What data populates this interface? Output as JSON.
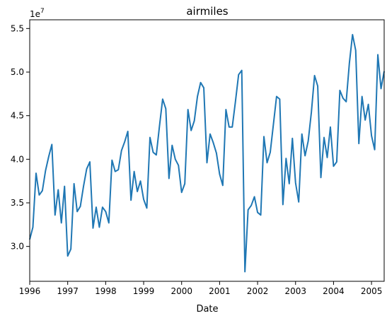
{
  "chart_data": {
    "type": "line",
    "title": "airmiles",
    "xlabel": "Date",
    "ylabel": "",
    "y_offset_label": "1e7",
    "xlim": [
      "1996-01",
      "2005-05"
    ],
    "ylim": [
      2.6,
      5.6
    ],
    "x_ticks": [
      {
        "date": "1996-01",
        "label": "1996"
      },
      {
        "date": "1997-01",
        "label": "1997"
      },
      {
        "date": "1998-01",
        "label": "1998"
      },
      {
        "date": "1999-01",
        "label": "1999"
      },
      {
        "date": "2000-01",
        "label": "2000"
      },
      {
        "date": "2001-01",
        "label": "2001"
      },
      {
        "date": "2002-01",
        "label": "2002"
      },
      {
        "date": "2003-01",
        "label": "2003"
      },
      {
        "date": "2004-01",
        "label": "2004"
      },
      {
        "date": "2005-01",
        "label": "2005"
      }
    ],
    "y_ticks": [
      {
        "value": 3.0,
        "label": "3.0"
      },
      {
        "value": 3.5,
        "label": "3.5"
      },
      {
        "value": 4.0,
        "label": "4.0"
      },
      {
        "value": 4.5,
        "label": "4.5"
      },
      {
        "value": 5.0,
        "label": "5.0"
      },
      {
        "value": 5.5,
        "label": "5.5"
      }
    ],
    "grid": false,
    "color": "#1f77b4",
    "series": [
      {
        "x": [
          "1996-01",
          "1996-02",
          "1996-03",
          "1996-04",
          "1996-05",
          "1996-06",
          "1996-07",
          "1996-08",
          "1996-09",
          "1996-10",
          "1996-11",
          "1996-12",
          "1997-01",
          "1997-02",
          "1997-03",
          "1997-04",
          "1997-05",
          "1997-06",
          "1997-07",
          "1997-08",
          "1997-09",
          "1997-10",
          "1997-11",
          "1997-12",
          "1998-01",
          "1998-02",
          "1998-03",
          "1998-04",
          "1998-05",
          "1998-06",
          "1998-07",
          "1998-08",
          "1998-09",
          "1998-10",
          "1998-11",
          "1998-12",
          "1999-01",
          "1999-02",
          "1999-03",
          "1999-04",
          "1999-05",
          "1999-06",
          "1999-07",
          "1999-08",
          "1999-09",
          "1999-10",
          "1999-11",
          "1999-12",
          "2000-01",
          "2000-02",
          "2000-03",
          "2000-04",
          "2000-05",
          "2000-06",
          "2000-07",
          "2000-08",
          "2000-09",
          "2000-10",
          "2000-11",
          "2000-12",
          "2001-01",
          "2001-02",
          "2001-03",
          "2001-04",
          "2001-05",
          "2001-06",
          "2001-07",
          "2001-08",
          "2001-09",
          "2001-10",
          "2001-11",
          "2001-12",
          "2002-01",
          "2002-02",
          "2002-03",
          "2002-04",
          "2002-05",
          "2002-06",
          "2002-07",
          "2002-08",
          "2002-09",
          "2002-10",
          "2002-11",
          "2002-12",
          "2003-01",
          "2003-02",
          "2003-03",
          "2003-04",
          "2003-05",
          "2003-06",
          "2003-07",
          "2003-08",
          "2003-09",
          "2003-10",
          "2003-11",
          "2003-12",
          "2004-01",
          "2004-02",
          "2004-03",
          "2004-04",
          "2004-05",
          "2004-06",
          "2004-07",
          "2004-08",
          "2004-09",
          "2004-10",
          "2004-11",
          "2004-12",
          "2005-01",
          "2005-02",
          "2005-03",
          "2005-04",
          "2005-05"
        ],
        "values": [
          3.08,
          3.22,
          3.84,
          3.59,
          3.64,
          3.87,
          4.03,
          4.17,
          3.36,
          3.65,
          3.27,
          3.69,
          2.89,
          2.97,
          3.72,
          3.4,
          3.46,
          3.69,
          3.89,
          3.97,
          3.21,
          3.45,
          3.22,
          3.45,
          3.4,
          3.27,
          3.99,
          3.86,
          3.88,
          4.1,
          4.2,
          4.32,
          3.53,
          3.86,
          3.63,
          3.75,
          3.54,
          3.44,
          4.25,
          4.08,
          4.05,
          4.38,
          4.69,
          4.58,
          3.78,
          4.16,
          4.0,
          3.93,
          3.62,
          3.72,
          4.57,
          4.33,
          4.44,
          4.72,
          4.88,
          4.82,
          3.96,
          4.29,
          4.19,
          4.07,
          3.83,
          3.7,
          4.57,
          4.37,
          4.37,
          4.66,
          4.97,
          5.02,
          2.71,
          3.42,
          3.47,
          3.57,
          3.39,
          3.36,
          4.26,
          3.96,
          4.08,
          4.4,
          4.72,
          4.69,
          3.48,
          4.01,
          3.72,
          4.24,
          3.73,
          3.51,
          4.29,
          4.04,
          4.21,
          4.54,
          4.96,
          4.84,
          3.79,
          4.25,
          4.02,
          4.37,
          3.92,
          3.97,
          4.79,
          4.7,
          4.66,
          5.1,
          5.43,
          5.25,
          4.18,
          4.72,
          4.45,
          4.63,
          4.27,
          4.11,
          5.2,
          4.81,
          5.01
        ]
      }
    ]
  }
}
